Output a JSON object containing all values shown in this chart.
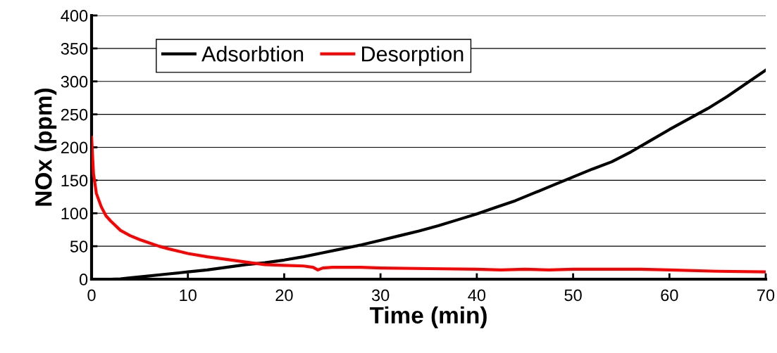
{
  "chart_data": {
    "type": "line",
    "xlabel": "Time (min)",
    "ylabel": "NOx (ppm)",
    "xlim": [
      0,
      70
    ],
    "xticks": [
      0,
      10,
      20,
      30,
      40,
      50,
      60,
      70
    ],
    "ylim": [
      0,
      400
    ],
    "yticks": [
      0,
      50,
      100,
      150,
      200,
      250,
      300,
      350,
      400
    ],
    "grid": "y",
    "legend": "top left",
    "marker": "none",
    "line_style": "solid",
    "series": [
      {
        "name": "Adsorbtion",
        "color": "#000000",
        "x": [
          0,
          2,
          3,
          4,
          6,
          8,
          10,
          12,
          14,
          16,
          18,
          20,
          22,
          24,
          26,
          28,
          30,
          32,
          34,
          36,
          38,
          40,
          42,
          44,
          46,
          48,
          50,
          52,
          54,
          56,
          58,
          60,
          62,
          64,
          66,
          68,
          70
        ],
        "values": [
          0,
          0,
          0.5,
          2,
          5,
          8,
          11,
          14,
          18,
          22,
          25,
          29,
          34,
          40,
          46,
          52,
          59,
          66,
          73,
          81,
          90,
          99,
          109,
          119,
          131,
          143,
          155,
          167,
          178,
          193,
          210,
          227,
          243,
          259,
          277,
          297,
          317
        ]
      },
      {
        "name": "Desorption",
        "color": "#ff0000",
        "x": [
          0,
          0.2,
          0.5,
          1,
          1.5,
          2,
          3,
          4,
          5,
          6,
          7,
          8,
          10,
          12,
          14,
          16,
          18,
          20,
          22,
          23,
          23.5,
          24,
          25,
          28,
          30,
          35,
          40,
          42.5,
          45,
          47.5,
          50,
          55,
          57,
          60,
          65,
          70
        ],
        "values": [
          215,
          160,
          130,
          110,
          96,
          88,
          74,
          66,
          60,
          55,
          50,
          46,
          39,
          34,
          30,
          26,
          22,
          21,
          20,
          18,
          14,
          17,
          18,
          18,
          17,
          16,
          15,
          14,
          15,
          14,
          15,
          15,
          15,
          14,
          12,
          11
        ]
      }
    ]
  }
}
